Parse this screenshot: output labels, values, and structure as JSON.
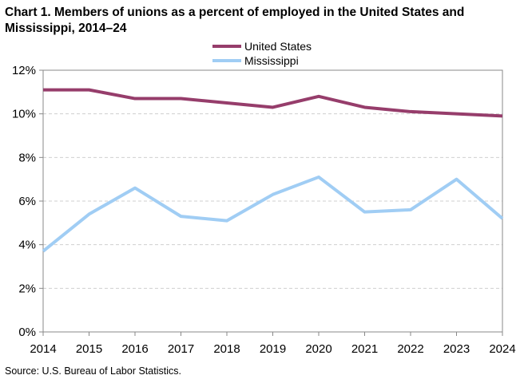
{
  "chart_data": {
    "type": "line",
    "title": "Chart 1. Members of unions as a percent of employed  in the United States and Mississippi,  2014–24",
    "source": "Source:  U.S. Bureau  of Labor Statistics.",
    "x": [
      "2014",
      "2015",
      "2016",
      "2017",
      "2018",
      "2019",
      "2020",
      "2021",
      "2022",
      "2023",
      "2024"
    ],
    "ylim": [
      0,
      12
    ],
    "yticks": [
      0,
      2,
      4,
      6,
      8,
      10,
      12
    ],
    "ytick_labels": [
      "0%",
      "2%",
      "4%",
      "6%",
      "8%",
      "10%",
      "12%"
    ],
    "grid": "horizontal dashed",
    "legend_position": "top",
    "series": [
      {
        "name": "United States",
        "color": "#963d6b",
        "values": [
          11.1,
          11.1,
          10.7,
          10.7,
          10.5,
          10.3,
          10.8,
          10.3,
          10.1,
          10.0,
          9.9
        ]
      },
      {
        "name": "Mississippi",
        "color": "#a0cdf4",
        "values": [
          3.7,
          5.4,
          6.6,
          5.3,
          5.1,
          6.3,
          7.1,
          5.5,
          5.6,
          7.0,
          5.2
        ]
      }
    ]
  }
}
